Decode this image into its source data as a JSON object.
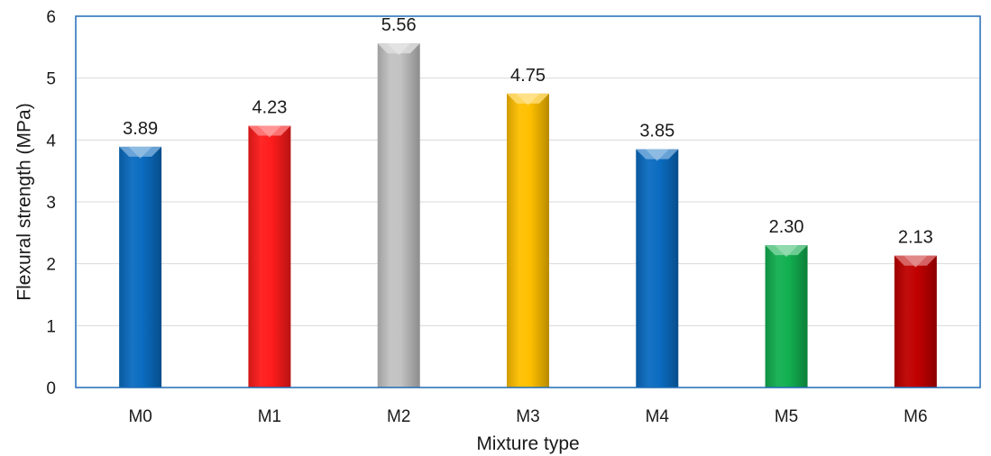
{
  "chart_data": {
    "type": "bar",
    "title": "",
    "xlabel": "Mixture type",
    "ylabel": "Flexural strength (MPa)",
    "categories": [
      "M0",
      "M1",
      "M2",
      "M3",
      "M4",
      "M5",
      "M6"
    ],
    "values": [
      3.89,
      4.23,
      5.56,
      4.75,
      3.85,
      2.3,
      2.13
    ],
    "value_labels": [
      "3.89",
      "4.23",
      "5.56",
      "4.75",
      "3.85",
      "2.30",
      "2.13"
    ],
    "ylim": [
      0,
      6
    ],
    "yticks": [
      0,
      1,
      2,
      3,
      4,
      5,
      6
    ],
    "ytick_labels": [
      "0",
      "1",
      "2",
      "3",
      "4",
      "5",
      "6"
    ],
    "grid": true,
    "legend": "none",
    "bar_colors": [
      "#0b6cc1",
      "#ff1c1c",
      "#c2c2c2",
      "#ffc000",
      "#0b6cc1",
      "#12b050",
      "#c00000"
    ],
    "border_color": "#1f6cb5"
  }
}
